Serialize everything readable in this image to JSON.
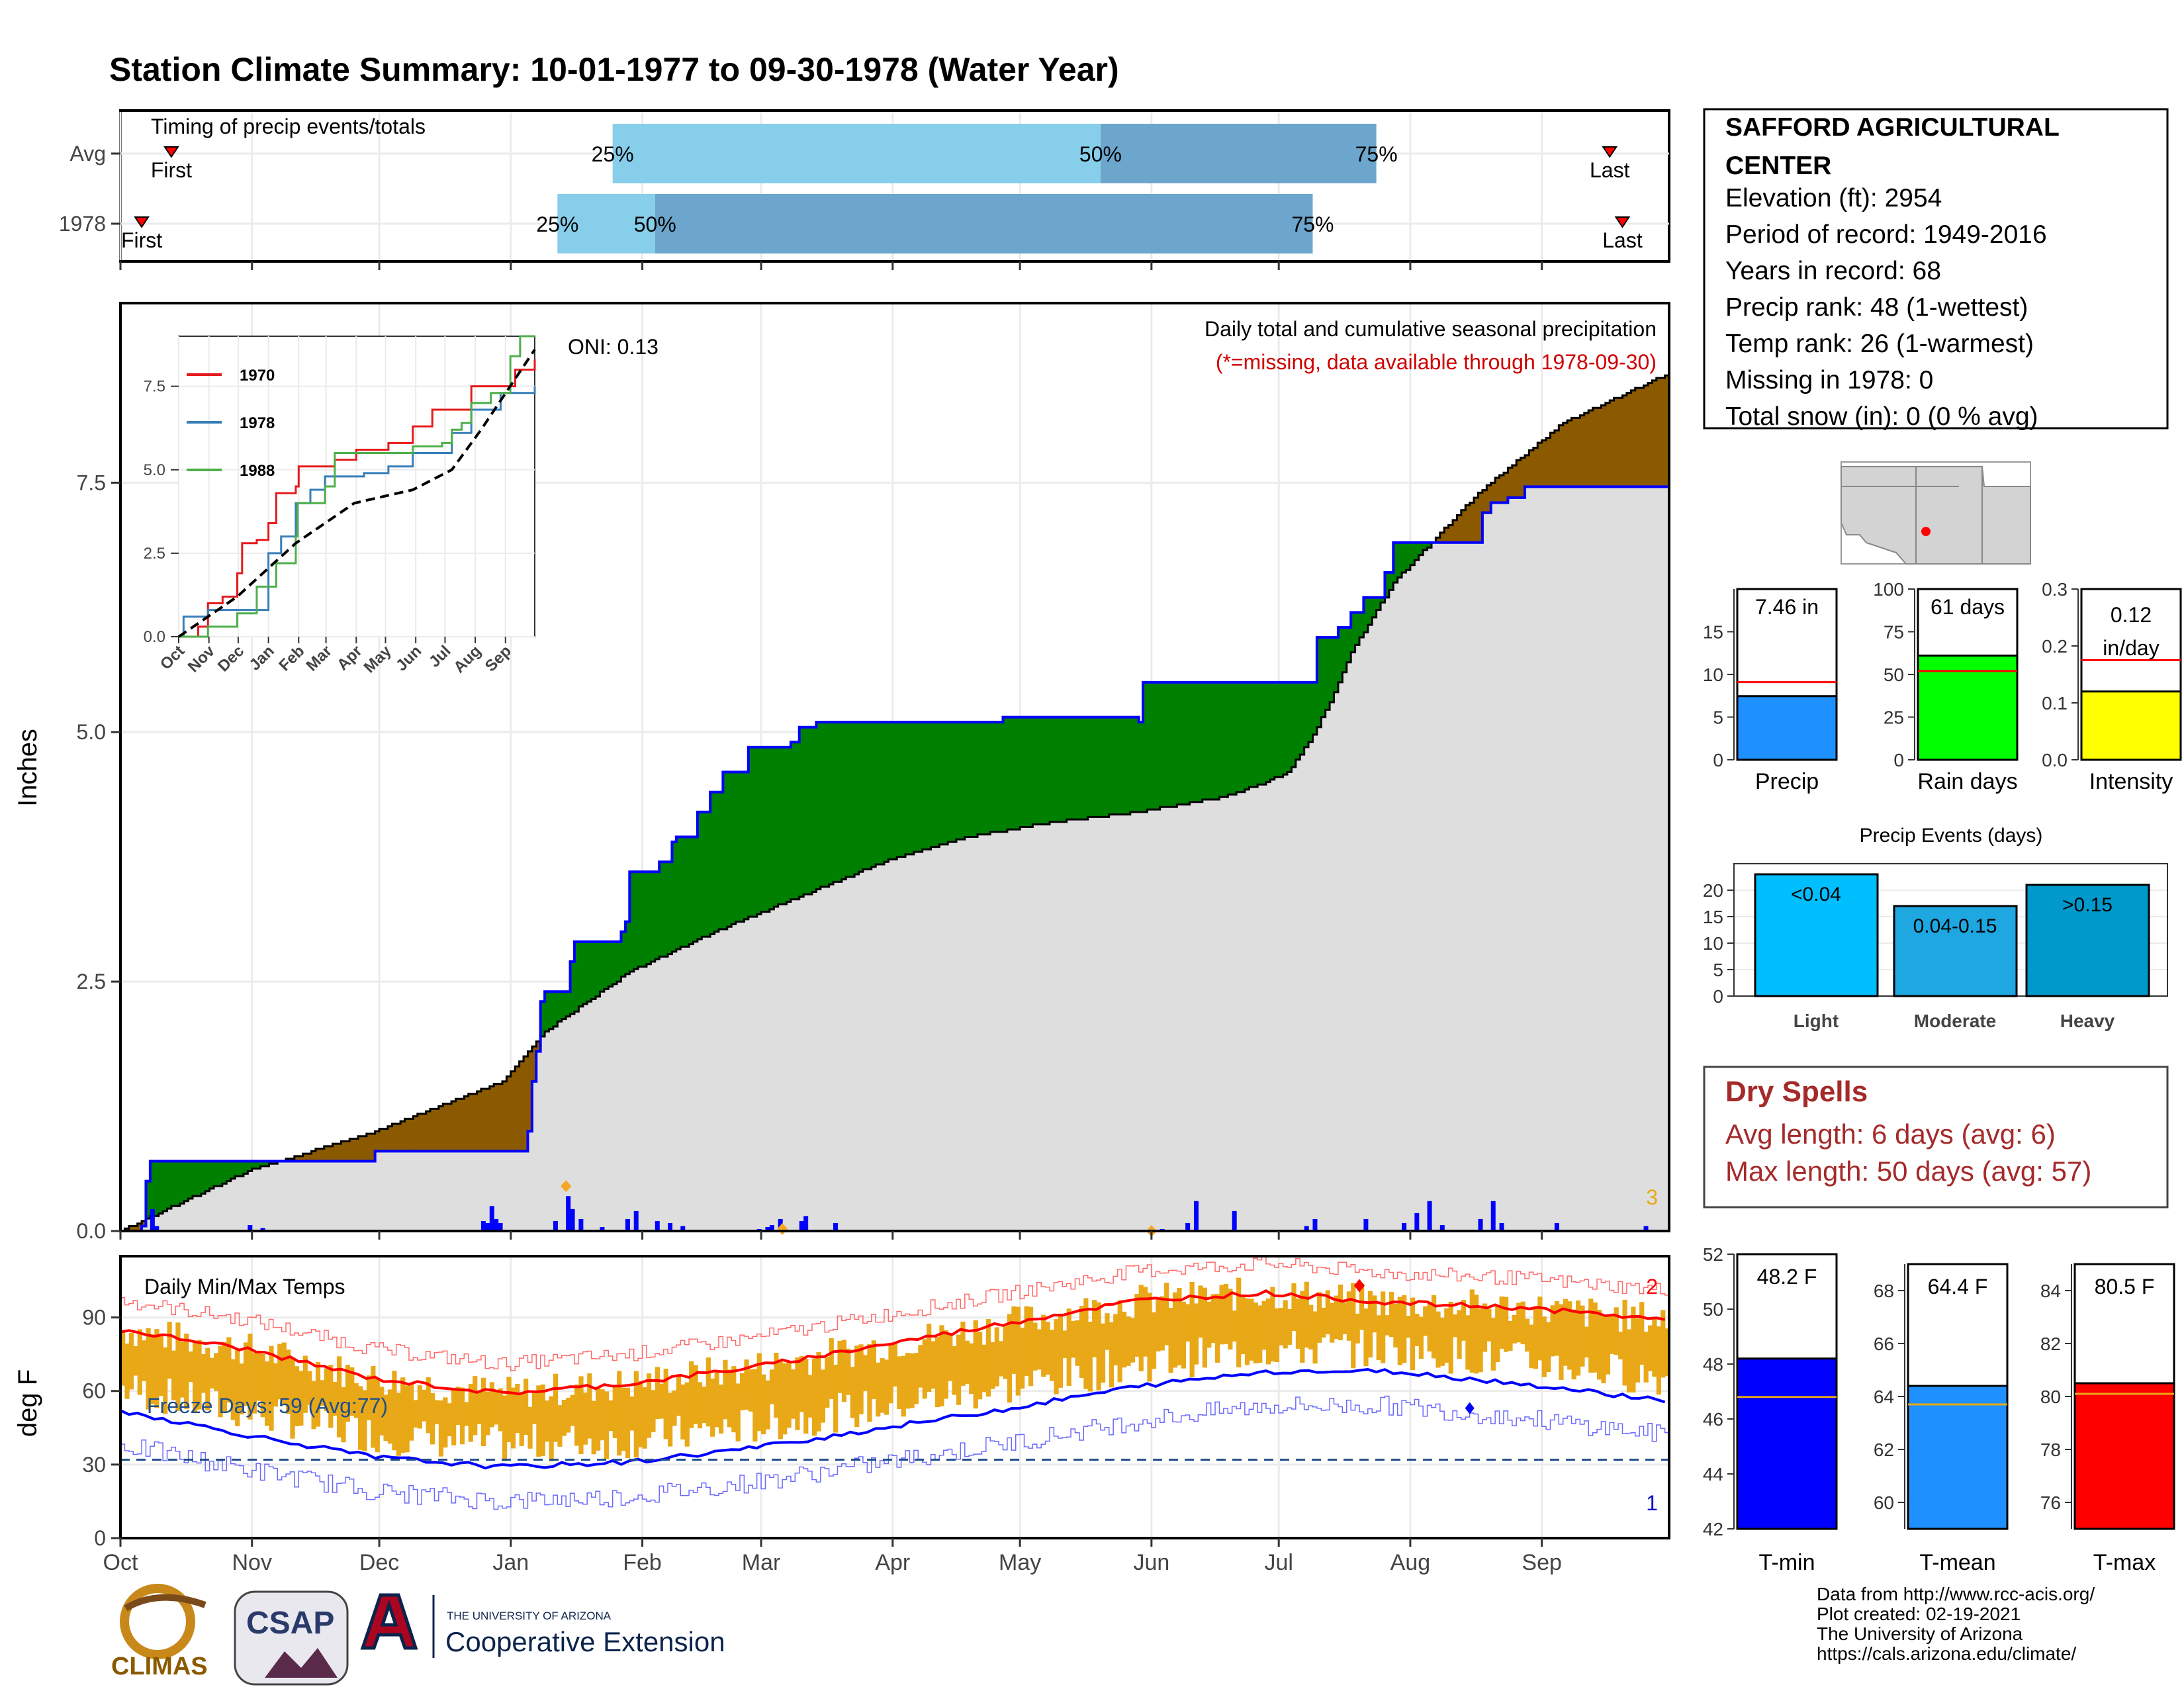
{
  "title": "Station Climate Summary: 10-01-1977 to 09-30-1978 (Water Year)",
  "colors": {
    "title": "#8B2500",
    "red_text": "#d00000",
    "dry_text": "#a52a2a",
    "green": "#008000",
    "brown": "#8B5A00",
    "grey_fill": "#dedede",
    "blue": "#0000ff",
    "orange": "#e8a817",
    "light_blue": "#87ceeb",
    "mid_blue": "#6ca6cd"
  },
  "months": [
    "Oct",
    "Nov",
    "Dec",
    "Jan",
    "Feb",
    "Mar",
    "Apr",
    "May",
    "Jun",
    "Jul",
    "Aug",
    "Sep"
  ],
  "timing": {
    "label": "Timing of precip events/totals",
    "rows": [
      {
        "name": "Avg",
        "first_label": "First",
        "last_label": "Last",
        "first_day": 12,
        "last_day": 351,
        "p25": 116,
        "p50": 231,
        "p75": 296,
        "l25": "25%",
        "l50": "50%",
        "l75": "75%"
      },
      {
        "name": "1978",
        "first_label": "First",
        "last_label": "Last",
        "first_day": 5,
        "last_day": 354,
        "p25": 103,
        "p50": 126,
        "p75": 281,
        "l25": "25%",
        "l50": "50%",
        "l75": "75%"
      }
    ]
  },
  "precip": {
    "ylabel": "Inches",
    "subtitle": "Daily total and cumulative seasonal precipitation",
    "missing_note": "(*=missing, data available through 1978-09-30)",
    "oni": "ONI: 0.13",
    "corner_count": "3",
    "yticks": [
      "0.0",
      "2.5",
      "5.0",
      "7.5"
    ]
  },
  "inset": {
    "legend": [
      "1970",
      "1978",
      "1988"
    ],
    "yticks": [
      "0.0",
      "2.5",
      "5.0",
      "7.5"
    ]
  },
  "temps": {
    "label": "Daily Min/Max Temps",
    "ylabel": "deg F",
    "freeze_text": "Freeze Days: 59 (Avg:77)",
    "count_top": "2",
    "count_bottom": "1",
    "yticks": [
      "0",
      "30",
      "60",
      "90"
    ]
  },
  "station": {
    "name": "SAFFORD AGRICULTURAL CENTER",
    "lines": [
      "Elevation (ft): 2954",
      "Period of record: 1949-2016",
      "Years in record: 68",
      "Precip rank: 48 (1-wettest)",
      "Temp rank: 26 (1-warmest)",
      "Missing in 1978: 0",
      "Total snow (in): 0 (0 % avg)"
    ]
  },
  "mini_bars": [
    {
      "label": "Precip",
      "value_text": "7.46 in",
      "value": 7.46,
      "avg": 9.1,
      "ymax": 20,
      "ticks": [
        "0",
        "5",
        "10",
        "15"
      ],
      "color": "#1e90ff"
    },
    {
      "label": "Rain days",
      "value_text": "61 days",
      "value": 61,
      "avg": 52,
      "ymax": 100,
      "ticks": [
        "0",
        "25",
        "50",
        "75",
        "100"
      ],
      "color": "#00ff00"
    },
    {
      "label": "Intensity",
      "value_text": "0.12 in/day",
      "value": 0.12,
      "avg": 0.175,
      "ymax": 0.3,
      "ticks": [
        "0.0",
        "0.1",
        "0.2",
        "0.3"
      ],
      "color": "#ffff00"
    }
  ],
  "events": {
    "title": "Precip Events (days)",
    "ticks": [
      "0",
      "5",
      "10",
      "15",
      "20"
    ],
    "bars": [
      {
        "label": "Light",
        "value_text": "<0.04",
        "value": 23,
        "color": "#00bfff"
      },
      {
        "label": "Moderate",
        "value_text": "0.04-0.15",
        "value": 17,
        "color": "#1ea7e0"
      },
      {
        "label": "Heavy",
        "value_text": ">0.15",
        "value": 21,
        "color": "#0099cc"
      }
    ]
  },
  "dry": {
    "title": "Dry Spells",
    "avg_line": "Avg length: 6 days (avg: 6)",
    "max_line": "Max length: 50 days (avg: 57)"
  },
  "temp_bars": [
    {
      "label": "T-min",
      "value_text": "48.2 F",
      "value": 48.2,
      "avg": 46.8,
      "ymin": 42,
      "ymax": 52,
      "ticks": [
        "42",
        "44",
        "46",
        "48",
        "50",
        "52"
      ],
      "color": "#0000ff"
    },
    {
      "label": "T-mean",
      "value_text": "64.4 F",
      "value": 64.4,
      "avg": 63.7,
      "ymin": 59,
      "ymax": 69,
      "ticks": [
        "60",
        "62",
        "64",
        "66",
        "68"
      ],
      "color": "#1e90ff"
    },
    {
      "label": "T-max",
      "value_text": "80.5 F",
      "value": 80.5,
      "avg": 80.1,
      "ymin": 75,
      "ymax": 85,
      "ticks": [
        "76",
        "78",
        "80",
        "82",
        "84"
      ],
      "color": "#ff0000"
    }
  ],
  "footer": [
    "Data from http://www.rcc-acis.org/",
    "Plot created: 02-19-2021",
    "The University of Arizona",
    "https://cals.arizona.edu/climate/"
  ],
  "logos": {
    "climas": "CLIMAS",
    "csap": "CSAP",
    "ua_small": "THE UNIVERSITY OF ARIZONA",
    "ua_big": "Cooperative Extension"
  },
  "chart_data": [
    {
      "type": "line",
      "title": "Daily total and cumulative seasonal precipitation",
      "ylabel": "Inches",
      "ylim": [
        0,
        9.3
      ],
      "series": [
        {
          "name": "1978",
          "x_day": [
            0,
            5,
            6,
            7,
            40,
            60,
            61,
            80,
            95,
            96,
            97,
            98,
            99,
            100,
            106,
            107,
            118,
            119,
            120,
            127,
            130,
            131,
            136,
            139,
            142,
            148,
            155,
            157,
            158,
            160,
            163,
            164,
            168,
            169,
            190,
            207,
            208,
            240,
            241,
            261,
            263,
            274,
            282,
            286,
            287,
            290,
            291,
            293,
            298,
            300,
            316,
            321,
            323,
            327,
            330,
            331,
            356,
            363
          ],
          "y": [
            0,
            0.05,
            0.5,
            0.7,
            0.7,
            0.8,
            0.8,
            0.8,
            0.8,
            1.0,
            1.5,
            1.8,
            2.3,
            2.4,
            2.7,
            2.9,
            3.0,
            3.1,
            3.6,
            3.7,
            3.9,
            3.95,
            4.2,
            4.4,
            4.6,
            4.85,
            4.85,
            4.85,
            4.9,
            5.05,
            5.05,
            5.1,
            5.1,
            5.1,
            5.1,
            5.1,
            5.15,
            5.1,
            5.5,
            5.5,
            5.5,
            5.5,
            5.95,
            5.95,
            6.05,
            6.2,
            6.2,
            6.35,
            6.6,
            6.9,
            6.9,
            7.2,
            7.3,
            7.35,
            7.35,
            7.46,
            7.46,
            7.46
          ]
        },
        {
          "name": "Avg",
          "x_day": [
            0,
            30,
            60,
            90,
            100,
            110,
            120,
            140,
            160,
            180,
            200,
            220,
            240,
            260,
            270,
            275,
            280,
            285,
            290,
            300,
            320,
            340,
            365
          ],
          "y": [
            0,
            0.6,
            1.0,
            1.5,
            2.0,
            2.3,
            2.6,
            3.0,
            3.35,
            3.7,
            3.95,
            4.1,
            4.2,
            4.35,
            4.5,
            4.6,
            4.9,
            5.3,
            5.8,
            6.5,
            7.4,
            8.1,
            8.6
          ]
        }
      ],
      "daily_bars_x_day": [
        7,
        8,
        30,
        33,
        85,
        86,
        87,
        88,
        89,
        102,
        105,
        106,
        108,
        113,
        119,
        121,
        126,
        129,
        132,
        150,
        152,
        153,
        155,
        160,
        161,
        168,
        245,
        251,
        253,
        262,
        279,
        281,
        293,
        302,
        305,
        308,
        311,
        320,
        323,
        325,
        338,
        359
      ],
      "daily_bars_in": [
        0.22,
        0.05,
        0.06,
        0.03,
        0.1,
        0.08,
        0.25,
        0.12,
        0.08,
        0.1,
        0.35,
        0.22,
        0.12,
        0.04,
        0.12,
        0.2,
        0.1,
        0.08,
        0.05,
        0.02,
        0.04,
        0.06,
        0.12,
        0.1,
        0.15,
        0.08,
        0.02,
        0.08,
        0.3,
        0.2,
        0.05,
        0.12,
        0.12,
        0.08,
        0.18,
        0.3,
        0.06,
        0.12,
        0.3,
        0.08,
        0.08,
        0.05
      ]
    },
    {
      "type": "line",
      "title": "Daily Min/Max Temps",
      "ylabel": "deg F",
      "ylim": [
        0,
        110
      ],
      "series": [
        {
          "name": "Avg max",
          "x_day": [
            0,
            30,
            60,
            90,
            120,
            150,
            180,
            210,
            240,
            270,
            300,
            330,
            365
          ],
          "y": [
            85,
            77,
            65,
            59,
            63,
            70,
            79,
            88,
            97,
            100,
            96,
            94,
            89
          ]
        },
        {
          "name": "Avg min",
          "x_day": [
            0,
            30,
            60,
            90,
            120,
            150,
            180,
            210,
            240,
            270,
            300,
            330,
            365
          ],
          "y": [
            52,
            42,
            33,
            29,
            31,
            37,
            45,
            53,
            62,
            68,
            68,
            63,
            56
          ]
        }
      ],
      "freeze_line": 32
    }
  ]
}
